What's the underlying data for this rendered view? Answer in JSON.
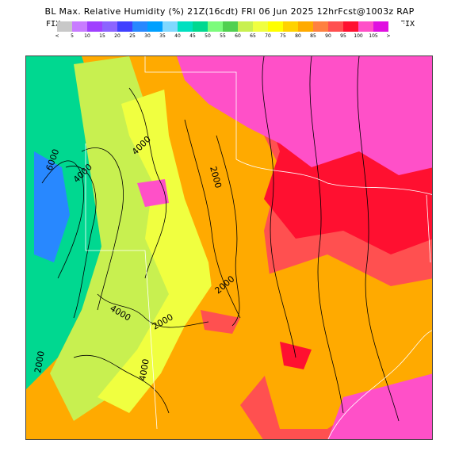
{
  "header": {
    "title": "BL Max. Relative Humidity (%) 21Z(16cdt) FRI 06 Jun 2025 12hrFcst@1003z RAP",
    "fix_left": "FIX",
    "fix_right": "FIX"
  },
  "color_scale": {
    "labels": [
      "<",
      "5",
      "10",
      "15",
      "20",
      "25",
      "30",
      "35",
      "40",
      "45",
      "50",
      "55",
      "60",
      "65",
      "70",
      "75",
      "80",
      "85",
      "90",
      "95",
      "100",
      "105",
      ">"
    ],
    "colors": [
      "#c8c8c8",
      "#c87cff",
      "#a040ff",
      "#8c64ff",
      "#4040ff",
      "#2888ff",
      "#00a0ff",
      "#80d8ff",
      "#00e0c0",
      "#00d890",
      "#7cfc7c",
      "#50d050",
      "#c8f050",
      "#f0ff40",
      "#ffff00",
      "#ffd200",
      "#ffaa00",
      "#ff8040",
      "#ff5050",
      "#ff1030",
      "#ff50c8",
      "#e010e0",
      "#ffffff"
    ]
  },
  "map": {
    "contour_labels": [
      "6000",
      "4000",
      "4000",
      "2000",
      "2000",
      "4000",
      "2000",
      "2000",
      "4000"
    ],
    "field_colors": {
      "very_dry": "#2888ff",
      "dry": "#00d890",
      "moderate": "#c8f050",
      "yellow": "#f0ff40",
      "orange": "#ffaa00",
      "red": "#ff5050",
      "deep_red": "#ff1030",
      "magenta": "#ff50c8"
    },
    "contour_color": "#000000",
    "border_color": "#ffffff"
  }
}
